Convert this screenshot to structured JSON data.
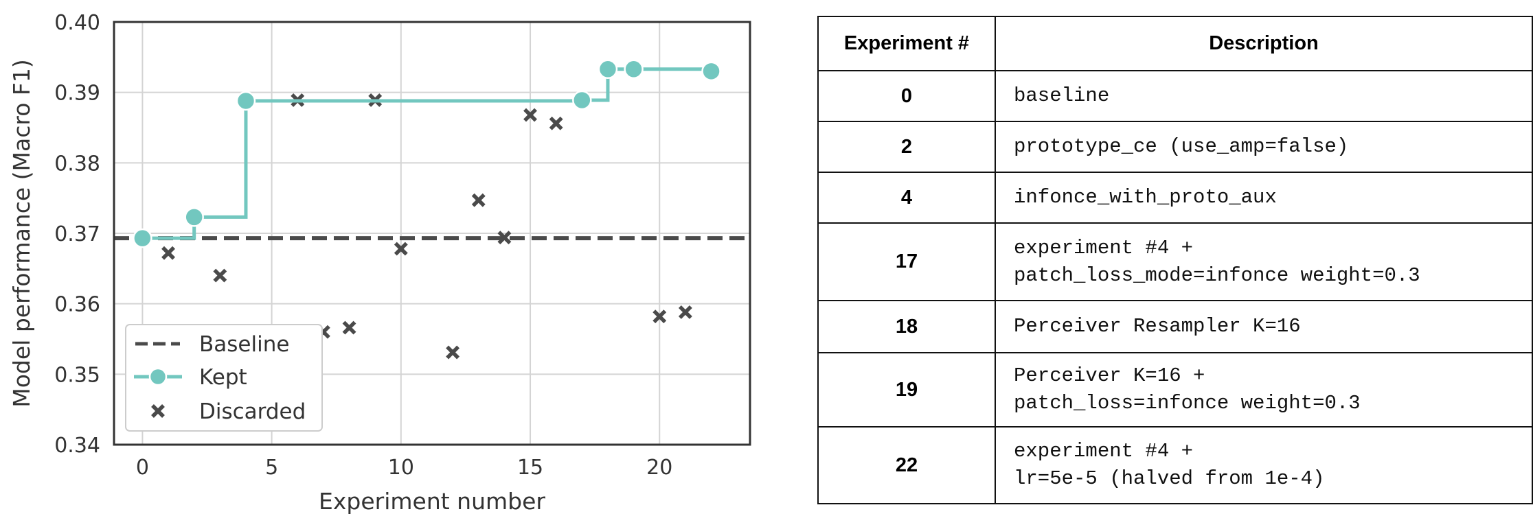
{
  "chart_data": {
    "type": "line",
    "xlabel": "Experiment number",
    "ylabel": "Model performance (Macro F1)",
    "xlim": [
      -1.1,
      23.5
    ],
    "ylim": [
      0.34,
      0.4
    ],
    "xticks": [
      0,
      5,
      10,
      15,
      20
    ],
    "yticks": [
      0.34,
      0.35,
      0.36,
      0.37,
      0.38,
      0.39,
      0.4
    ],
    "xtick_labels": [
      "0",
      "5",
      "10",
      "15",
      "20"
    ],
    "ytick_labels": [
      "0.34",
      "0.35",
      "0.36",
      "0.37",
      "0.38",
      "0.39",
      "0.40"
    ],
    "grid": true,
    "legend_position": "bottom-left",
    "baseline": {
      "name": "Baseline",
      "y": 0.3693,
      "color": "#4a4a4a",
      "style": "dashed"
    },
    "kept": {
      "name": "Kept",
      "color": "#72c7bf",
      "style": "step",
      "x": [
        0,
        2,
        4,
        17,
        18,
        19,
        22
      ],
      "y": [
        0.3693,
        0.3723,
        0.3888,
        0.3889,
        0.3933,
        0.3933,
        0.393
      ]
    },
    "discarded": {
      "name": "Discarded",
      "color": "#4a4a4a",
      "marker": "x",
      "x": [
        1,
        3,
        6,
        7,
        8,
        9,
        10,
        12,
        13,
        14,
        15,
        16,
        20,
        21
      ],
      "y": [
        0.3672,
        0.364,
        0.3889,
        0.356,
        0.3566,
        0.3889,
        0.3678,
        0.3531,
        0.3747,
        0.3694,
        0.3868,
        0.3856,
        0.3582,
        0.3588
      ]
    }
  },
  "table": {
    "headers": [
      "Experiment #",
      "Description"
    ],
    "rows": [
      {
        "num": "0",
        "desc": "baseline"
      },
      {
        "num": "2",
        "desc": "prototype_ce (use_amp=false)"
      },
      {
        "num": "4",
        "desc": "infonce_with_proto_aux"
      },
      {
        "num": "17",
        "desc": "experiment #4 +\npatch_loss_mode=infonce weight=0.3"
      },
      {
        "num": "18",
        "desc": "Perceiver Resampler K=16"
      },
      {
        "num": "19",
        "desc": "Perceiver K=16 +\npatch_loss=infonce weight=0.3"
      },
      {
        "num": "22",
        "desc": "experiment #4 +\nlr=5e-5 (halved from 1e-4)"
      }
    ]
  }
}
